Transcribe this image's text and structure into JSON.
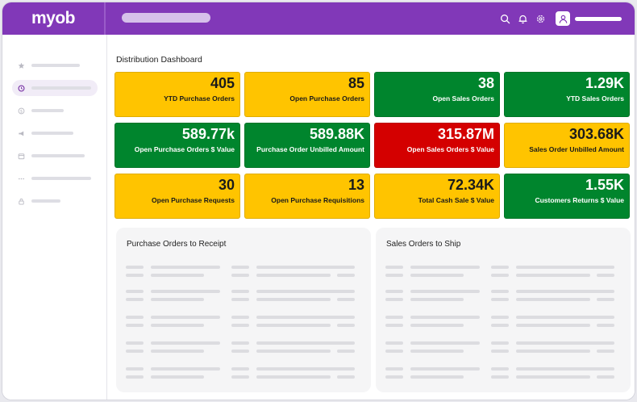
{
  "app": {
    "logo": "myob"
  },
  "colors": {
    "brand": "#8138b8",
    "tile_yellow": "#ffc400",
    "tile_green": "#00852d",
    "tile_red": "#d40000"
  },
  "header": {
    "icons": [
      "search-icon",
      "bell-icon",
      "gear-icon",
      "user-icon"
    ]
  },
  "sidebar": {
    "icons": [
      "star-icon",
      "clock-icon",
      "dollar-icon",
      "megaphone-icon",
      "calendar-icon",
      "more-icon",
      "lock-icon"
    ],
    "active_index": 1
  },
  "main": {
    "title": "Distribution Dashboard",
    "tiles": [
      {
        "value": "405",
        "label": "YTD Purchase Orders",
        "color": "yellow"
      },
      {
        "value": "85",
        "label": "Open Purchase Orders",
        "color": "yellow"
      },
      {
        "value": "38",
        "label": "Open Sales Orders",
        "color": "green"
      },
      {
        "value": "1.29K",
        "label": "YTD Sales Orders",
        "color": "green"
      },
      {
        "value": "589.77k",
        "label": "Open Purchase Orders $ Value",
        "color": "green"
      },
      {
        "value": "589.88K",
        "label": "Purchase Order Unbilled Amount",
        "color": "green"
      },
      {
        "value": "315.87M",
        "label": "Open Sales Orders $ Value",
        "color": "red"
      },
      {
        "value": "303.68K",
        "label": "Sales Order Unbilled Amount",
        "color": "yellow"
      },
      {
        "value": "30",
        "label": "Open Purchase Requests",
        "color": "yellow"
      },
      {
        "value": "13",
        "label": "Open Purchase Requisitions",
        "color": "yellow"
      },
      {
        "value": "72.34K",
        "label": "Total Cash Sale $ Value",
        "color": "yellow"
      },
      {
        "value": "1.55K",
        "label": "Customers Returns $ Value",
        "color": "green"
      }
    ],
    "panels": [
      {
        "title": "Purchase  Orders to Receipt"
      },
      {
        "title": "Sales Orders to Ship"
      }
    ]
  }
}
